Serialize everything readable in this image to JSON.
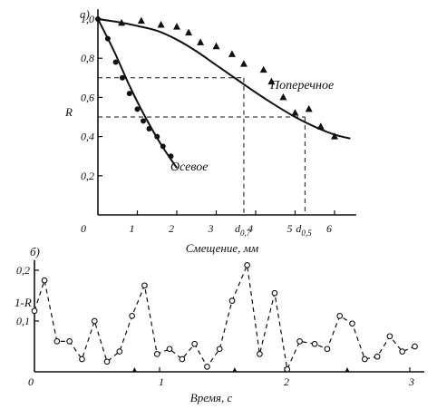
{
  "chart_data": [
    {
      "type": "scatter",
      "panel_label": "а)",
      "ylabel": "R",
      "xlabel": "Смещение, мм",
      "xlim": [
        0,
        6.6
      ],
      "ylim": [
        0,
        1.05
      ],
      "x_ticks": [
        "0",
        "1",
        "2",
        "3",
        "4",
        "5",
        "6"
      ],
      "y_ticks": [
        "0,2",
        "0,4",
        "0,6",
        "0,8",
        "1,0"
      ],
      "series": [
        {
          "name": "Осевое",
          "marker": "circle",
          "x": [
            0,
            0.25,
            0.45,
            0.62,
            0.8,
            1.0,
            1.15,
            1.3,
            1.5,
            1.65,
            1.85
          ],
          "y": [
            1.0,
            0.9,
            0.78,
            0.7,
            0.62,
            0.54,
            0.48,
            0.44,
            0.4,
            0.35,
            0.3
          ],
          "fit_x": [
            0,
            0.4,
            0.8,
            1.2,
            1.6,
            2.0
          ],
          "fit_y": [
            1.0,
            0.84,
            0.66,
            0.5,
            0.36,
            0.24
          ]
        },
        {
          "name": "Поперечное",
          "marker": "triangle",
          "x": [
            0.6,
            1.1,
            1.6,
            2.0,
            2.3,
            2.6,
            3.0,
            3.4,
            3.7,
            4.2,
            4.4,
            4.7,
            5.0,
            5.35,
            5.65,
            6.0
          ],
          "y": [
            0.98,
            0.99,
            0.97,
            0.96,
            0.93,
            0.88,
            0.86,
            0.82,
            0.77,
            0.74,
            0.68,
            0.6,
            0.52,
            0.54,
            0.45,
            0.4
          ],
          "fit_x": [
            0,
            0.5,
            1.0,
            1.5,
            2.0,
            2.5,
            3.0,
            3.5,
            4.0,
            4.5,
            5.0,
            5.5,
            6.0,
            6.4
          ],
          "fit_y": [
            1.0,
            0.985,
            0.965,
            0.94,
            0.895,
            0.835,
            0.765,
            0.695,
            0.625,
            0.56,
            0.5,
            0.45,
            0.41,
            0.39
          ]
        }
      ],
      "guides": [
        {
          "y": 0.7,
          "x": 3.7,
          "label": "d",
          "label_sub": "0,7"
        },
        {
          "y": 0.5,
          "x": 5.25,
          "label": "d",
          "label_sub": "0,5"
        }
      ]
    },
    {
      "type": "line",
      "panel_label": "б)",
      "ylabel": "1-R",
      "xlabel": "Время, с",
      "xlim": [
        0,
        3.1
      ],
      "ylim": [
        0,
        0.22
      ],
      "x_ticks": [
        "0",
        "1",
        "2",
        "3"
      ],
      "y_ticks": [
        "0,1",
        "0,2"
      ],
      "series": [
        {
          "name": "",
          "marker": "open-circle",
          "line_style": "dashed",
          "x": [
            0.0,
            0.08,
            0.18,
            0.28,
            0.38,
            0.48,
            0.58,
            0.68,
            0.78,
            0.88,
            0.98,
            1.08,
            1.18,
            1.28,
            1.38,
            1.48,
            1.58,
            1.7,
            1.8,
            1.92,
            2.02,
            2.12,
            2.24,
            2.34,
            2.44,
            2.54,
            2.64,
            2.74,
            2.84,
            2.94,
            3.04
          ],
          "y": [
            0.12,
            0.18,
            0.06,
            0.06,
            0.025,
            0.1,
            0.02,
            0.04,
            0.11,
            0.17,
            0.035,
            0.045,
            0.025,
            0.055,
            0.01,
            0.045,
            0.14,
            0.21,
            0.035,
            0.155,
            0.005,
            0.06,
            0.055,
            0.045,
            0.11,
            0.095,
            0.025,
            0.03,
            0.07,
            0.04,
            0.05
          ]
        }
      ],
      "events": [
        0.8,
        1.6,
        2.5
      ]
    }
  ]
}
